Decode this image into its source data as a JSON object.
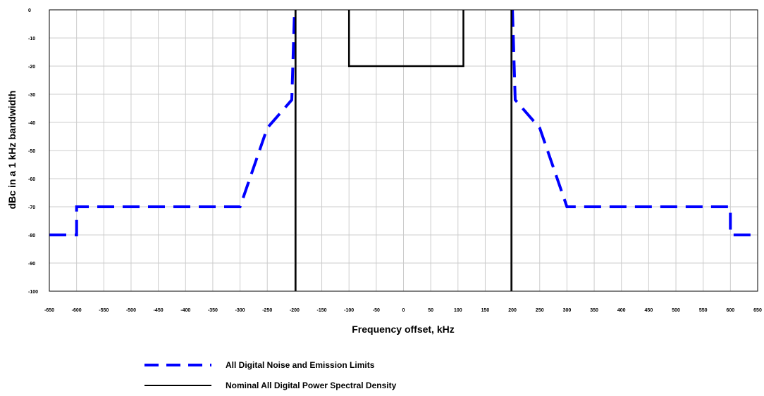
{
  "chart_data": {
    "type": "line",
    "title": "",
    "xlabel": "Frequency offset, kHz",
    "ylabel": "dBc in a 1 kHz bandwidth",
    "xlim": [
      -650,
      650
    ],
    "ylim": [
      -100,
      0
    ],
    "xticks": [
      -650,
      -600,
      -550,
      -500,
      -450,
      -400,
      -350,
      -300,
      -250,
      -200,
      -150,
      -100,
      -50,
      0,
      50,
      100,
      150,
      200,
      250,
      300,
      350,
      400,
      450,
      500,
      550,
      600,
      650
    ],
    "yticks": [
      0,
      -10,
      -20,
      -30,
      -40,
      -50,
      -60,
      -70,
      -80,
      -90,
      -100
    ],
    "grid": true,
    "legend_position": "bottom",
    "series": [
      {
        "name": "All Digital Noise and Emission Limits",
        "style": "dashed",
        "color": "#0000ff",
        "x": [
          -650,
          -600,
          -600,
          -300,
          -250,
          -205,
          -200,
          -200,
          200,
          200,
          205,
          250,
          300,
          600,
          600,
          650
        ],
        "y": [
          -80,
          -80,
          -70,
          -70,
          -42,
          -32,
          0,
          null,
          null,
          0,
          -32,
          -42,
          -70,
          -70,
          -80,
          -80
        ]
      },
      {
        "name": "Nominal All Digital Power Spectral Density",
        "style": "solid",
        "color": "#000000",
        "segments": [
          {
            "x": [
              -198,
              -198
            ],
            "y": [
              -100,
              0
            ]
          },
          {
            "x": [
              198,
              198
            ],
            "y": [
              -100,
              0
            ]
          },
          {
            "x": [
              -100,
              -100,
              110,
              110
            ],
            "y": [
              0,
              -20,
              -20,
              0
            ]
          }
        ]
      }
    ]
  }
}
